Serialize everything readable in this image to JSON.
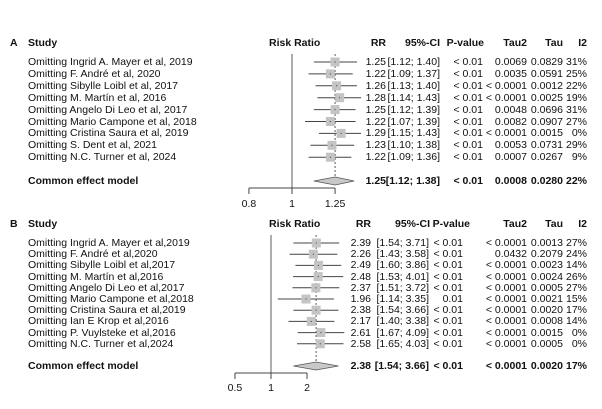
{
  "chart_data": [
    {
      "type": "forest",
      "panel_label": "A",
      "headers": {
        "study": "Study",
        "plot": "Risk Ratio",
        "rr": "RR",
        "ci": "95%-CI",
        "p": "P-value",
        "tau2": "Tau2",
        "tau": "Tau",
        "i2": "I2"
      },
      "scale": "log",
      "reference_line": 1,
      "ticks": [
        "0.8",
        "1",
        "1.25"
      ],
      "tick_values": [
        0.8,
        1,
        1.25
      ],
      "studies": [
        {
          "label": "Omitting Ingrid A. Mayer et al, 2019",
          "rr": 1.25,
          "lo": 1.12,
          "hi": 1.4,
          "rr_text": "1.25",
          "ci_text": "[1.12; 1.40]",
          "p": "< 0.01",
          "tau2": "0.0069",
          "tau": "0.0829",
          "i2": "31%"
        },
        {
          "label": "Omitting F. André et al, 2020",
          "rr": 1.22,
          "lo": 1.09,
          "hi": 1.37,
          "rr_text": "1.22",
          "ci_text": "[1.09; 1.37]",
          "p": "< 0.01",
          "tau2": "0.0035",
          "tau": "0.0591",
          "i2": "25%"
        },
        {
          "label": "Omitting Sibylle Loibl et al, 2017",
          "rr": 1.26,
          "lo": 1.13,
          "hi": 1.4,
          "rr_text": "1.26",
          "ci_text": "[1.13; 1.40]",
          "p": "< 0.01",
          "tau2": "< 0.0001",
          "tau": "0.0012",
          "i2": "22%"
        },
        {
          "label": "Omitting M. Martín et al, 2016",
          "rr": 1.28,
          "lo": 1.14,
          "hi": 1.43,
          "rr_text": "1.28",
          "ci_text": "[1.14; 1.43]",
          "p": "< 0.01",
          "tau2": "< 0.0001",
          "tau": "0.0025",
          "i2": "19%"
        },
        {
          "label": "Omitting Angelo Di Leo et al, 2017",
          "rr": 1.25,
          "lo": 1.12,
          "hi": 1.39,
          "rr_text": "1.25",
          "ci_text": "[1.12; 1.39]",
          "p": "< 0.01",
          "tau2": "0.0048",
          "tau": "0.0696",
          "i2": "31%"
        },
        {
          "label": "Omitting Mario Campone et al, 2018",
          "rr": 1.22,
          "lo": 1.07,
          "hi": 1.39,
          "rr_text": "1.22",
          "ci_text": "[1.07; 1.39]",
          "p": "< 0.01",
          "tau2": "0.0082",
          "tau": "0.0907",
          "i2": "27%"
        },
        {
          "label": "Omitting Cristina Saura et al, 2019",
          "rr": 1.29,
          "lo": 1.15,
          "hi": 1.43,
          "rr_text": "1.29",
          "ci_text": "[1.15; 1.43]",
          "p": "< 0.01",
          "tau2": "< 0.0001",
          "tau": "0.0015",
          "i2": "0%"
        },
        {
          "label": "Omitting S. Dent et al, 2021",
          "rr": 1.23,
          "lo": 1.1,
          "hi": 1.38,
          "rr_text": "1.23",
          "ci_text": "[1.10; 1.38]",
          "p": "< 0.01",
          "tau2": "0.0053",
          "tau": "0.0731",
          "i2": "29%"
        },
        {
          "label": "Omitting N.C. Turner et al, 2024",
          "rr": 1.22,
          "lo": 1.09,
          "hi": 1.36,
          "rr_text": "1.22",
          "ci_text": "[1.09; 1.36]",
          "p": "< 0.01",
          "tau2": "0.0007",
          "tau": "0.0267",
          "i2": "9%"
        }
      ],
      "pooled": {
        "label": "Common effect model",
        "rr": 1.25,
        "lo": 1.12,
        "hi": 1.38,
        "rr_text": "1.25",
        "ci_text": "[1.12; 1.38]",
        "p": "< 0.01",
        "tau2": "0.0008",
        "tau": "0.0280",
        "i2": "22%"
      }
    },
    {
      "type": "forest",
      "panel_label": "B",
      "headers": {
        "study": "Study",
        "plot": "Risk Ratio",
        "rr": "RR",
        "ci": "95%-CI",
        "p": "P-value",
        "tau2": "Tau2",
        "tau": "Tau",
        "i2": "I2"
      },
      "scale": "log",
      "reference_line": 1,
      "ticks": [
        "0.5",
        "1",
        "2"
      ],
      "tick_values": [
        0.5,
        1,
        2
      ],
      "studies": [
        {
          "label": "Omitting Ingrid A. Mayer et al,2019",
          "rr": 2.39,
          "lo": 1.54,
          "hi": 3.71,
          "rr_text": "2.39",
          "ci_text": "[1.54; 3.71]",
          "p": "< 0.01",
          "tau2": "< 0.0001",
          "tau": "0.0013",
          "i2": "27%"
        },
        {
          "label": "Omitting F. André et al,2020",
          "rr": 2.26,
          "lo": 1.43,
          "hi": 3.58,
          "rr_text": "2.26",
          "ci_text": "[1.43; 3.58]",
          "p": "< 0.01",
          "tau2": "0.0432",
          "tau": "0.2079",
          "i2": "24%"
        },
        {
          "label": "Omitting Sibylle Loibl et al,2017",
          "rr": 2.49,
          "lo": 1.6,
          "hi": 3.86,
          "rr_text": "2.49",
          "ci_text": "[1.60; 3.86]",
          "p": "< 0.01",
          "tau2": "< 0.0001",
          "tau": "0.0023",
          "i2": "14%"
        },
        {
          "label": "Omitting M. Martín et al,2016",
          "rr": 2.48,
          "lo": 1.53,
          "hi": 4.01,
          "rr_text": "2.48",
          "ci_text": "[1.53; 4.01]",
          "p": "< 0.01",
          "tau2": "< 0.0001",
          "tau": "0.0024",
          "i2": "26%"
        },
        {
          "label": "Omitting Angelo Di Leo et al,2017",
          "rr": 2.37,
          "lo": 1.51,
          "hi": 3.72,
          "rr_text": "2.37",
          "ci_text": "[1.51; 3.72]",
          "p": "< 0.01",
          "tau2": "< 0.0001",
          "tau": "0.0005",
          "i2": "27%"
        },
        {
          "label": "Omitting Mario Campone et al,2018",
          "rr": 1.96,
          "lo": 1.14,
          "hi": 3.35,
          "rr_text": "1.96",
          "ci_text": "[1.14; 3.35]",
          "p": "0.01",
          "tau2": "< 0.0001",
          "tau": "0.0021",
          "i2": "15%"
        },
        {
          "label": "Omitting Cristina Saura et al,2019",
          "rr": 2.38,
          "lo": 1.54,
          "hi": 3.66,
          "rr_text": "2.38",
          "ci_text": "[1.54; 3.66]",
          "p": "< 0.01",
          "tau2": "< 0.0001",
          "tau": "0.0020",
          "i2": "17%"
        },
        {
          "label": "Omitting Ian E Krop et al,2016",
          "rr": 2.17,
          "lo": 1.4,
          "hi": 3.38,
          "rr_text": "2.17",
          "ci_text": "[1.40; 3.38]",
          "p": "< 0.01",
          "tau2": "< 0.0001",
          "tau": "0.0008",
          "i2": "14%"
        },
        {
          "label": "Omitting P. Vuylsteke et al,2016",
          "rr": 2.61,
          "lo": 1.67,
          "hi": 4.09,
          "rr_text": "2.61",
          "ci_text": "[1.67; 4.09]",
          "p": "< 0.01",
          "tau2": "< 0.0001",
          "tau": "0.0015",
          "i2": "0%"
        },
        {
          "label": "Omitting N.C. Turner et al,2024",
          "rr": 2.58,
          "lo": 1.65,
          "hi": 4.03,
          "rr_text": "2.58",
          "ci_text": "[1.65; 4.03]",
          "p": "< 0.01",
          "tau2": "< 0.0001",
          "tau": "0.0005",
          "i2": "0%"
        }
      ],
      "pooled": {
        "label": "Common effect model",
        "rr": 2.38,
        "lo": 1.54,
        "hi": 3.66,
        "rr_text": "2.38",
        "ci_text": "[1.54; 3.66]",
        "p": "< 0.01",
        "tau2": "< 0.0001",
        "tau": "0.0020",
        "i2": "17%"
      }
    }
  ],
  "colors": {
    "box": "#c4c4c4",
    "line": "#444444",
    "diamond": "#c8c8c8"
  }
}
